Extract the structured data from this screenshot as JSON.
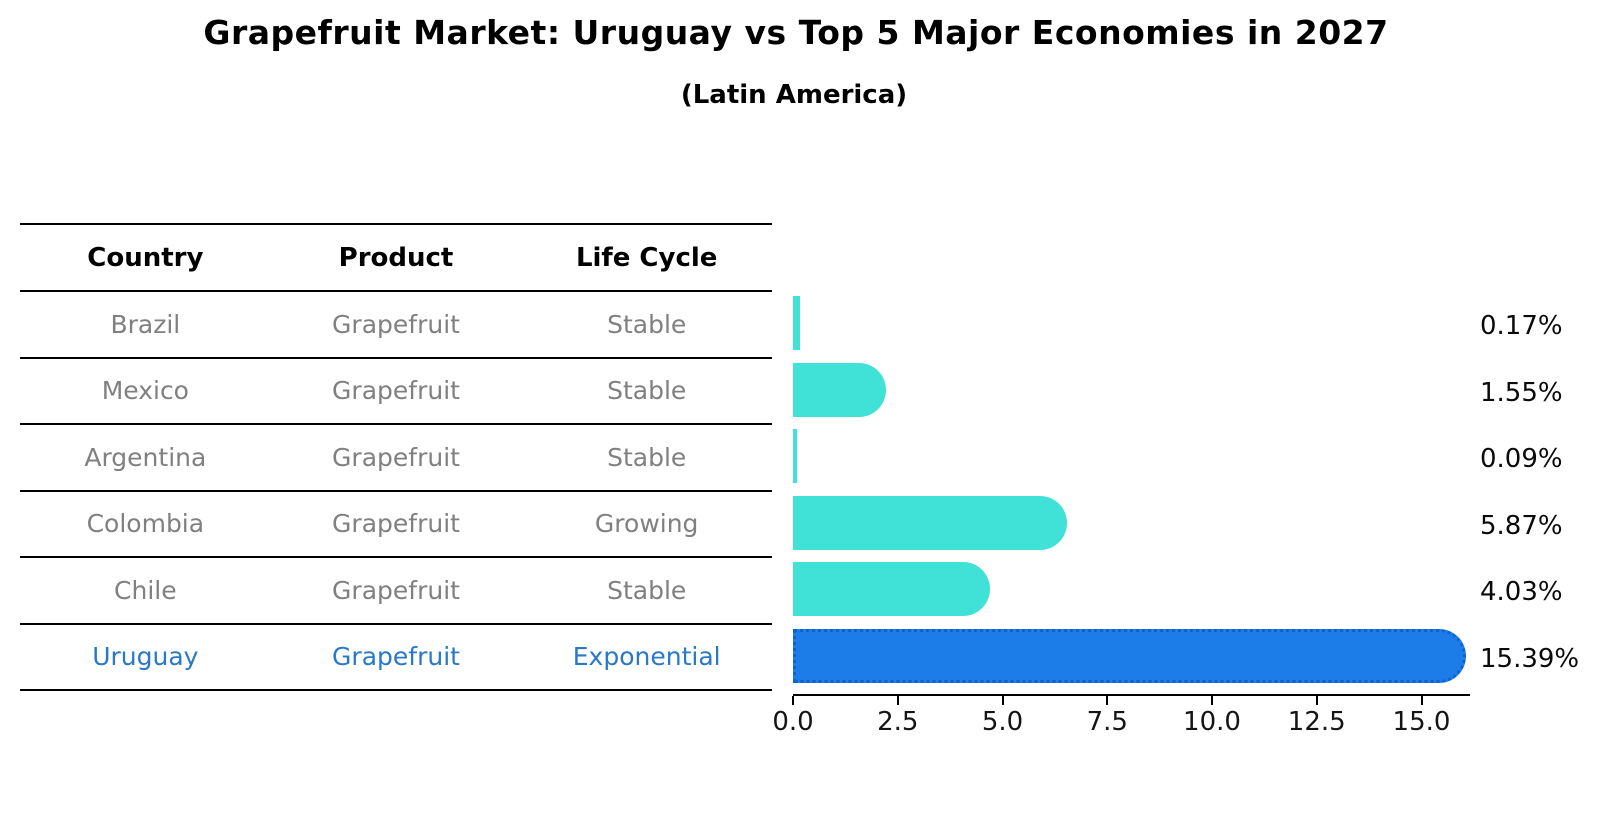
{
  "title": "Grapefruit Market: Uruguay vs Top 5 Major Economies in 2027",
  "subtitle": "(Latin America)",
  "table": {
    "columns": [
      "Country",
      "Product",
      "Life Cycle"
    ]
  },
  "chart_data": {
    "type": "bar",
    "orientation": "horizontal",
    "title": "Grapefruit Market: Uruguay vs Top 5 Major Economies in 2027",
    "subtitle": "(Latin America)",
    "value_unit": "%",
    "xlim": [
      0,
      16.2
    ],
    "x_ticks": [
      0.0,
      2.5,
      5.0,
      7.5,
      10.0,
      12.5,
      15.0
    ],
    "x_tick_labels": [
      "0.0",
      "2.5",
      "5.0",
      "7.5",
      "10.0",
      "12.5",
      "15.0"
    ],
    "grid": false,
    "legend": "none",
    "rows": [
      {
        "country": "Brazil",
        "product": "Grapefruit",
        "life_cycle": "Stable",
        "value": 0.17,
        "label": "0.17%",
        "highlight": false
      },
      {
        "country": "Mexico",
        "product": "Grapefruit",
        "life_cycle": "Stable",
        "value": 1.55,
        "label": "1.55%",
        "highlight": false
      },
      {
        "country": "Argentina",
        "product": "Grapefruit",
        "life_cycle": "Stable",
        "value": 0.09,
        "label": "0.09%",
        "highlight": false
      },
      {
        "country": "Colombia",
        "product": "Grapefruit",
        "life_cycle": "Growing",
        "value": 5.87,
        "label": "5.87%",
        "highlight": false
      },
      {
        "country": "Chile",
        "product": "Grapefruit",
        "life_cycle": "Stable",
        "value": 4.03,
        "label": "4.03%",
        "highlight": false
      },
      {
        "country": "Uruguay",
        "product": "Grapefruit",
        "life_cycle": "Exponential",
        "value": 15.39,
        "label": "15.39%",
        "highlight": true
      }
    ],
    "colors": {
      "bar_default": "#40E1D6",
      "bar_highlight": "#1C7CE8",
      "bar_highlight_edge": "#0E63CF",
      "row_text": "#808080",
      "highlight_text": "#2879C8",
      "header_text": "#000000",
      "axis_text": "#141414"
    }
  }
}
